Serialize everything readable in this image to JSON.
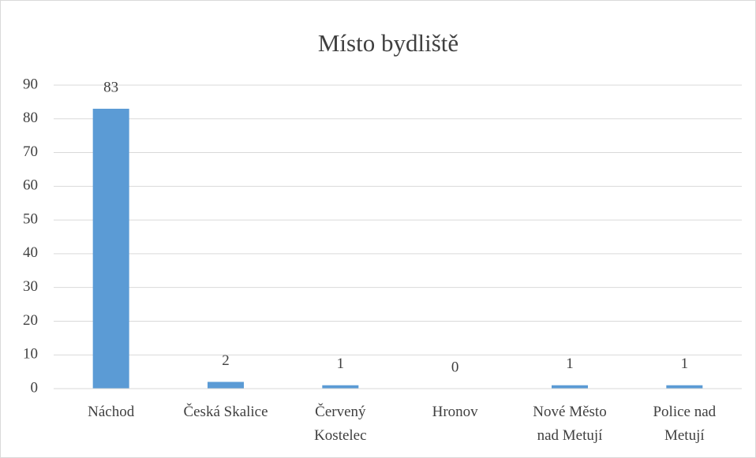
{
  "chart_data": {
    "type": "bar",
    "title": "Místo bydliště",
    "categories": [
      "Náchod",
      "Česká Skalice",
      "Červený Kostelec",
      "Hronov",
      "Nové Město nad Metují",
      "Police nad Metují"
    ],
    "values": [
      83,
      2,
      1,
      0,
      1,
      1
    ],
    "color": "#5b9bd5",
    "ylim": [
      0,
      90
    ],
    "yticks": [
      0,
      10,
      20,
      30,
      40,
      50,
      60,
      70,
      80,
      90
    ],
    "grid": true
  }
}
